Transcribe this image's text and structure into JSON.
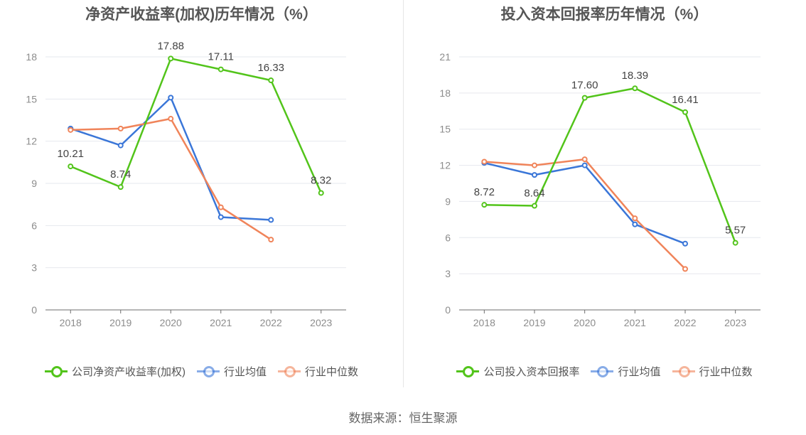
{
  "source": "数据来源：恒生聚源",
  "chart_data": [
    {
      "type": "line",
      "title": "净资产收益率(加权)历年情况（%）",
      "categories": [
        "2018",
        "2019",
        "2020",
        "2021",
        "2022",
        "2023"
      ],
      "ylim": [
        0,
        18
      ],
      "yticks": [
        "0",
        "3",
        "6",
        "9",
        "12",
        "15",
        "18"
      ],
      "grid": true,
      "legend_position": "bottom",
      "series": [
        {
          "name": "公司净资产收益率(加权)",
          "color": "#52c41a",
          "values": [
            10.21,
            8.74,
            17.88,
            17.11,
            16.33,
            8.32
          ],
          "labels": [
            "10.21",
            "8.74",
            "17.88",
            "17.11",
            "16.33",
            "8.32"
          ]
        },
        {
          "name": "行业均值",
          "color": "#3a76d8",
          "values": [
            12.9,
            11.7,
            15.1,
            6.6,
            6.4,
            null
          ]
        },
        {
          "name": "行业中位数",
          "color": "#f0845a",
          "values": [
            12.8,
            12.9,
            13.6,
            7.3,
            5.0,
            null
          ]
        }
      ]
    },
    {
      "type": "line",
      "title": "投入资本回报率历年情况（%）",
      "categories": [
        "2018",
        "2019",
        "2020",
        "2021",
        "2022",
        "2023"
      ],
      "ylim": [
        0,
        21
      ],
      "yticks": [
        "0",
        "3",
        "6",
        "9",
        "12",
        "15",
        "18",
        "21"
      ],
      "grid": true,
      "legend_position": "bottom",
      "series": [
        {
          "name": "公司投入资本回报率",
          "color": "#52c41a",
          "values": [
            8.72,
            8.64,
            17.6,
            18.39,
            16.41,
            5.57
          ],
          "labels": [
            "8.72",
            "8.64",
            "17.60",
            "18.39",
            "16.41",
            "5.57"
          ]
        },
        {
          "name": "行业均值",
          "color": "#3a76d8",
          "values": [
            12.2,
            11.2,
            12.0,
            7.1,
            5.5,
            null
          ]
        },
        {
          "name": "行业中位数",
          "color": "#f0845a",
          "values": [
            12.3,
            12.0,
            12.5,
            7.6,
            3.4,
            null
          ]
        }
      ]
    }
  ]
}
